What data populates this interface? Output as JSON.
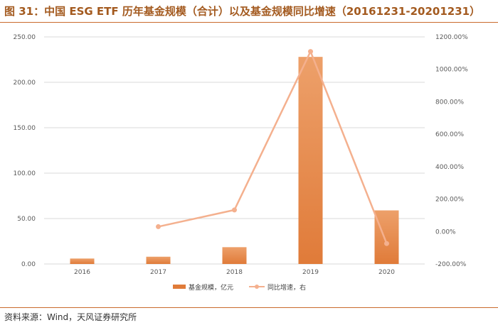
{
  "header": {
    "title": "图 31：中国 ESG ETF 历年基金规模（合计）以及基金规模同比增速（20161231-20201231）"
  },
  "footer": {
    "source": "资料来源：Wind，天风证券研究所"
  },
  "colors": {
    "bar": "#e07b39",
    "bar_light": "#eda06a",
    "line": "#f4b08e",
    "title": "#a35a1f",
    "rule": "#c96b2c",
    "grid": "#d9d9d9"
  },
  "chart_data": {
    "type": "bar",
    "categories": [
      "2016",
      "2017",
      "2018",
      "2019",
      "2020"
    ],
    "series": [
      {
        "name": "基金规模，亿元",
        "type": "bar",
        "axis": "left",
        "values": [
          6.0,
          8.0,
          18.5,
          228.0,
          59.0
        ]
      },
      {
        "name": "同比增速，右",
        "type": "line",
        "axis": "right",
        "values": [
          null,
          30.0,
          133.0,
          1110.0,
          -74.0
        ]
      }
    ],
    "left_axis": {
      "ylim": [
        0,
        250
      ],
      "ticks": [
        "0.00",
        "50.00",
        "100.00",
        "150.00",
        "200.00",
        "250.00"
      ]
    },
    "right_axis": {
      "ylim": [
        -200,
        1200
      ],
      "ticks": [
        "-200.00%",
        "0.00%",
        "200.00%",
        "400.00%",
        "600.00%",
        "800.00%",
        "1000.00%",
        "1200.00%"
      ]
    },
    "grid": true,
    "legend_position": "bottom"
  }
}
